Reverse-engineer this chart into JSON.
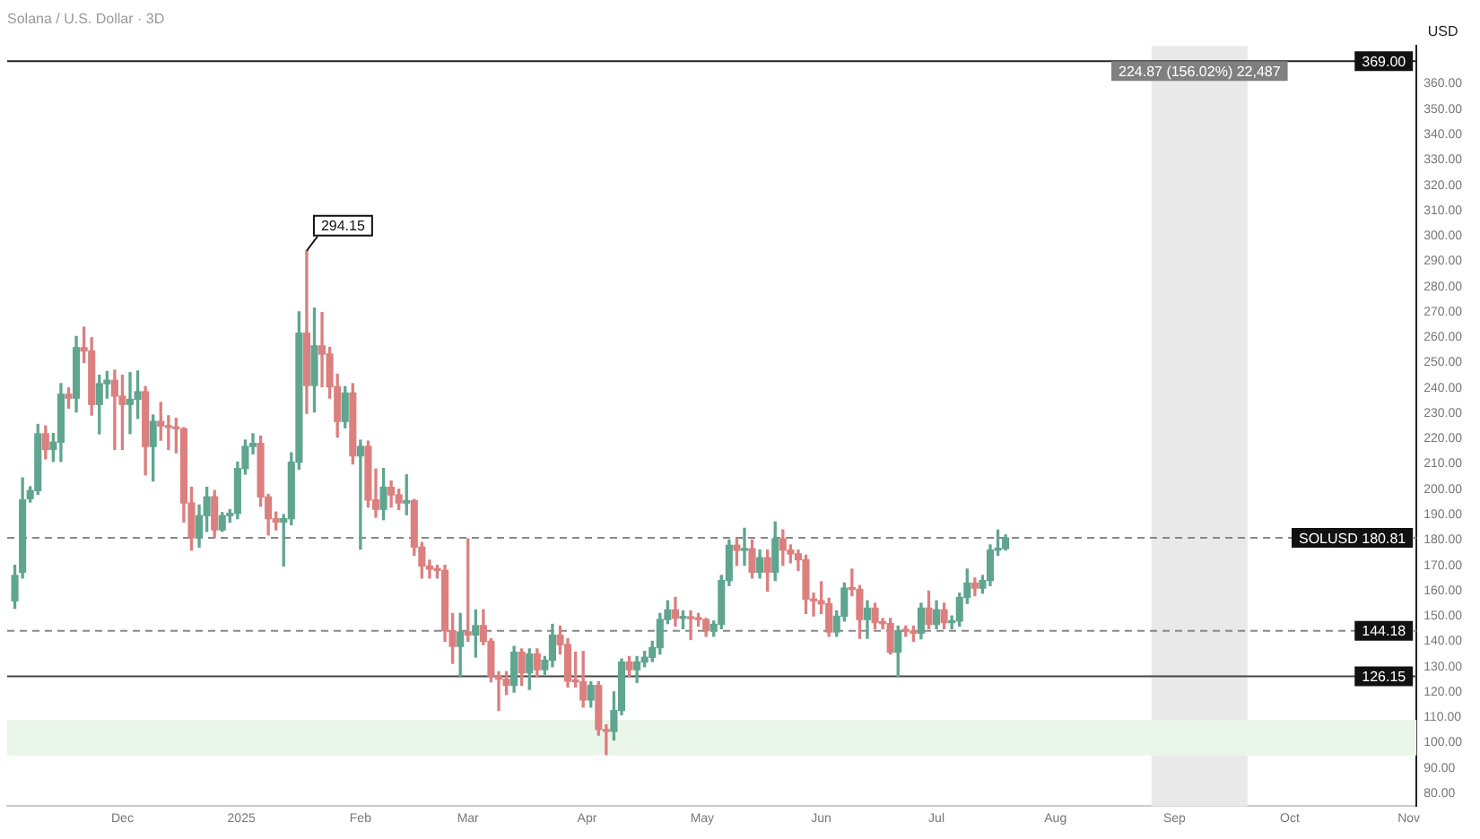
{
  "chart_data": {
    "type": "candlestick",
    "title": "Solana / U.S. Dollar · 3D",
    "ylabel": "USD",
    "x": [
      "2024-11-03",
      "2024-11-05",
      "2024-11-07",
      "2024-11-09",
      "2024-11-11",
      "2024-11-13",
      "2024-11-15",
      "2024-11-17",
      "2024-11-19",
      "2024-11-21",
      "2024-11-23",
      "2024-11-25",
      "2024-11-27",
      "2024-11-29",
      "2024-12-01",
      "2024-12-03",
      "2024-12-05",
      "2024-12-07",
      "2024-12-09",
      "2024-12-11",
      "2024-12-13",
      "2024-12-15",
      "2024-12-17",
      "2024-12-19",
      "2024-12-21",
      "2024-12-23",
      "2024-12-25",
      "2024-12-27",
      "2024-12-29",
      "2024-12-31",
      "2025-01-02",
      "2025-01-04",
      "2025-01-06",
      "2025-01-08",
      "2025-01-10",
      "2025-01-12",
      "2025-01-14",
      "2025-01-16",
      "2025-01-18",
      "2025-01-20",
      "2025-01-22",
      "2025-01-24",
      "2025-01-26",
      "2025-01-28",
      "2025-01-30",
      "2025-02-01",
      "2025-02-03",
      "2025-02-05",
      "2025-02-07",
      "2025-02-09",
      "2025-02-11",
      "2025-02-13",
      "2025-02-15",
      "2025-02-17",
      "2025-02-19",
      "2025-02-21",
      "2025-02-23",
      "2025-02-25",
      "2025-02-27",
      "2025-03-01",
      "2025-03-03",
      "2025-03-05",
      "2025-03-07",
      "2025-03-09",
      "2025-03-11",
      "2025-03-13",
      "2025-03-15",
      "2025-03-17",
      "2025-03-19",
      "2025-03-21",
      "2025-03-23",
      "2025-03-25",
      "2025-03-27",
      "2025-03-29",
      "2025-03-31",
      "2025-04-02",
      "2025-04-04",
      "2025-04-06",
      "2025-04-08",
      "2025-04-10",
      "2025-04-12",
      "2025-04-14",
      "2025-04-16",
      "2025-04-18",
      "2025-04-20",
      "2025-04-22",
      "2025-04-24",
      "2025-04-26",
      "2025-04-28",
      "2025-04-30",
      "2025-05-02",
      "2025-05-04",
      "2025-05-06",
      "2025-05-08",
      "2025-05-10",
      "2025-05-12",
      "2025-05-14",
      "2025-05-16",
      "2025-05-18",
      "2025-05-20",
      "2025-05-22",
      "2025-05-24",
      "2025-05-26",
      "2025-05-28",
      "2025-05-30",
      "2025-06-01",
      "2025-06-03",
      "2025-06-05",
      "2025-06-07",
      "2025-06-09",
      "2025-06-11",
      "2025-06-13",
      "2025-06-15",
      "2025-06-17",
      "2025-06-19",
      "2025-06-21",
      "2025-06-23",
      "2025-06-25",
      "2025-06-27",
      "2025-06-29",
      "2025-07-01",
      "2025-07-03",
      "2025-07-05",
      "2025-07-07",
      "2025-07-09",
      "2025-07-11",
      "2025-07-13",
      "2025-07-15",
      "2025-07-17",
      "2025-07-19"
    ],
    "ohlc": [
      [
        156,
        170,
        153,
        166
      ],
      [
        167.3,
        204.5,
        165,
        195.8
      ],
      [
        196.3,
        201,
        195,
        199.5
      ],
      [
        199.5,
        225.6,
        198,
        221.9
      ],
      [
        221.9,
        225,
        212,
        215.7
      ],
      [
        215.7,
        222,
        211,
        218.6
      ],
      [
        218.6,
        241.7,
        211,
        237.5
      ],
      [
        237.5,
        240,
        232,
        236
      ],
      [
        236,
        260.3,
        230.5,
        255.9
      ],
      [
        255.9,
        264,
        250,
        254.6
      ],
      [
        254.6,
        259.8,
        229.3,
        233.5
      ],
      [
        233.5,
        245,
        221.9,
        241.7
      ],
      [
        241.7,
        246.5,
        236,
        243
      ],
      [
        243,
        247,
        215.7,
        236.8
      ],
      [
        236.8,
        245,
        215.7,
        233.5
      ],
      [
        233.5,
        246,
        222,
        235.5
      ],
      [
        235.5,
        246.7,
        228,
        238.5
      ],
      [
        238.5,
        240.5,
        205.7,
        216.9
      ],
      [
        216.9,
        229.3,
        203.3,
        226.8
      ],
      [
        226.8,
        234.3,
        219.4,
        225
      ],
      [
        225,
        229,
        215.7,
        224.4
      ],
      [
        224.4,
        228,
        214.4,
        223.9
      ],
      [
        223.9,
        224.3,
        187.1,
        194.6
      ],
      [
        194.6,
        200.8,
        176,
        180.9
      ],
      [
        180.9,
        193.8,
        177.2,
        189.6
      ],
      [
        189.6,
        200.8,
        183.4,
        197
      ],
      [
        197,
        199.5,
        181,
        184
      ],
      [
        184,
        190.8,
        183.4,
        189.6
      ],
      [
        189.6,
        192,
        187,
        190.5
      ],
      [
        190.5,
        210.7,
        188.4,
        208.2
      ],
      [
        208.2,
        219.4,
        206,
        216.9
      ],
      [
        216.9,
        221.9,
        214,
        218.1
      ],
      [
        218.1,
        221,
        193.3,
        197
      ],
      [
        197,
        198,
        182,
        188.4
      ],
      [
        188.4,
        191,
        184,
        187.1
      ],
      [
        187.1,
        190,
        169.7,
        188.4
      ],
      [
        188.4,
        214.4,
        186,
        210.7
      ],
      [
        210.7,
        270,
        208,
        261.6
      ],
      [
        261.6,
        294.15,
        230,
        241
      ],
      [
        241,
        271.5,
        230.5,
        256.6
      ],
      [
        256.6,
        269.8,
        240.5,
        253.4
      ],
      [
        253.4,
        256,
        236,
        240.5
      ],
      [
        240.5,
        245.4,
        220.6,
        226.8
      ],
      [
        226.8,
        240.5,
        224.3,
        238
      ],
      [
        238,
        241.7,
        210,
        213.2
      ],
      [
        213.2,
        219.4,
        176.4,
        216.9
      ],
      [
        216.9,
        219,
        193,
        195.8
      ],
      [
        195.8,
        208,
        189,
        192.1
      ],
      [
        192.1,
        208.2,
        188,
        200.8
      ],
      [
        200.8,
        203.3,
        193,
        197.8
      ],
      [
        197.8,
        200,
        192,
        194.6
      ],
      [
        194.6,
        205.7,
        190,
        195.5
      ],
      [
        195.5,
        196,
        174,
        177.2
      ],
      [
        177.2,
        179,
        165,
        169.7
      ],
      [
        169.7,
        172,
        165,
        168.5
      ],
      [
        168.5,
        170,
        165,
        168
      ],
      [
        168,
        170,
        140,
        144.2
      ],
      [
        144.2,
        151,
        131.3,
        138
      ],
      [
        138,
        151,
        126.3,
        143.7
      ],
      [
        143.7,
        180.4,
        140,
        142.5
      ],
      [
        142.5,
        152.4,
        133.8,
        146.2
      ],
      [
        146.2,
        152.4,
        138.7,
        140
      ],
      [
        140,
        141,
        124,
        126.3
      ],
      [
        126.3,
        128,
        112.7,
        125.1
      ],
      [
        125.1,
        128,
        119,
        122.6
      ],
      [
        122.6,
        138,
        120,
        135.7
      ],
      [
        135.7,
        137,
        122.6,
        127.6
      ],
      [
        127.6,
        137,
        121,
        135
      ],
      [
        135,
        137,
        126,
        128.8
      ],
      [
        128.8,
        134,
        127,
        132.5
      ],
      [
        132.5,
        146.7,
        130,
        142.4
      ],
      [
        142.4,
        146,
        135,
        138.7
      ],
      [
        138.7,
        141,
        122,
        124.3
      ],
      [
        124.3,
        135.7,
        122,
        124
      ],
      [
        124,
        136,
        114,
        116.9
      ],
      [
        116.9,
        124,
        114,
        122.6
      ],
      [
        122.6,
        124,
        103,
        105.2
      ],
      [
        105.2,
        107,
        95.3,
        104.5
      ],
      [
        104.5,
        120,
        101,
        112.7
      ],
      [
        112.7,
        133,
        111,
        131.8
      ],
      [
        131.8,
        134,
        126,
        128.8
      ],
      [
        128.8,
        134,
        123.8,
        131.8
      ],
      [
        131.8,
        136,
        130,
        133.7
      ],
      [
        133.7,
        140,
        132,
        137.5
      ],
      [
        137.5,
        151,
        135,
        148.6
      ],
      [
        148.6,
        156,
        147,
        152.4
      ],
      [
        152.4,
        157.3,
        146,
        149.1
      ],
      [
        149.1,
        152,
        145,
        149.4
      ],
      [
        149.4,
        152,
        140.7,
        149
      ],
      [
        149,
        151,
        146,
        148.6
      ],
      [
        148.6,
        149,
        142,
        144.2
      ],
      [
        144.2,
        148,
        142,
        146.7
      ],
      [
        146.7,
        166,
        145,
        164
      ],
      [
        164,
        180,
        162,
        177.9
      ],
      [
        177.9,
        180.5,
        170,
        175.9
      ],
      [
        175.9,
        184.6,
        170,
        176.5
      ],
      [
        176.5,
        180,
        165,
        167.3
      ],
      [
        167.3,
        176,
        165,
        173
      ],
      [
        173,
        176,
        159.8,
        167.3
      ],
      [
        167.3,
        187.1,
        164,
        180.4
      ],
      [
        180.4,
        184,
        170,
        176
      ],
      [
        176,
        178,
        171,
        174.5
      ],
      [
        174.5,
        176,
        168,
        172.2
      ],
      [
        172.2,
        174,
        151,
        156.6
      ],
      [
        156.6,
        159,
        150,
        156
      ],
      [
        156,
        163.5,
        151,
        154.8
      ],
      [
        154.8,
        157,
        142,
        143.7
      ],
      [
        143.7,
        152,
        142,
        149.9
      ],
      [
        149.9,
        163,
        148,
        161
      ],
      [
        161,
        168.5,
        158,
        160.5
      ],
      [
        160.5,
        162,
        141.2,
        148.6
      ],
      [
        148.6,
        156,
        141.2,
        153.1
      ],
      [
        153.1,
        155,
        145,
        147.4
      ],
      [
        147.4,
        149,
        145,
        147
      ],
      [
        147,
        149,
        135,
        135.7
      ],
      [
        135.7,
        146,
        126.3,
        144.2
      ],
      [
        144.2,
        146,
        142,
        144
      ],
      [
        144,
        146,
        140,
        143.2
      ],
      [
        143.2,
        155,
        141,
        153.1
      ],
      [
        153.1,
        159.8,
        145,
        146.7
      ],
      [
        146.7,
        156,
        145,
        152.4
      ],
      [
        152.4,
        155,
        145,
        147.4
      ],
      [
        147.4,
        150,
        145,
        148
      ],
      [
        148,
        159,
        146,
        157.3
      ],
      [
        157.3,
        168.5,
        155,
        163
      ],
      [
        163,
        165,
        158,
        161
      ],
      [
        161,
        166,
        159,
        164
      ],
      [
        164,
        178,
        162,
        176
      ],
      [
        176,
        183.9,
        174,
        176.6
      ],
      [
        176.6,
        182,
        176,
        180.81
      ]
    ],
    "colors": [
      "#5fa58f",
      "#5fa58f",
      "#5fa58f",
      "#5fa58f",
      "#dc7f7f",
      "#5fa58f",
      "#5fa58f",
      "#dc7f7f",
      "#5fa58f",
      "#dc7f7f",
      "#dc7f7f",
      "#5fa58f",
      "#5fa58f",
      "#dc7f7f",
      "#dc7f7f",
      "#5fa58f",
      "#5fa58f",
      "#dc7f7f",
      "#5fa58f",
      "#dc7f7f",
      "#dc7f7f",
      "#dc7f7f",
      "#dc7f7f",
      "#dc7f7f",
      "#5fa58f",
      "#5fa58f",
      "#dc7f7f",
      "#5fa58f",
      "#5fa58f",
      "#5fa58f",
      "#5fa58f",
      "#5fa58f",
      "#dc7f7f",
      "#dc7f7f",
      "#dc7f7f",
      "#5fa58f",
      "#5fa58f",
      "#5fa58f",
      "#dc7f7f",
      "#5fa58f",
      "#dc7f7f",
      "#dc7f7f",
      "#dc7f7f",
      "#5fa58f",
      "#dc7f7f",
      "#5fa58f",
      "#dc7f7f",
      "#dc7f7f",
      "#5fa58f",
      "#dc7f7f",
      "#dc7f7f",
      "#5fa58f",
      "#dc7f7f",
      "#dc7f7f",
      "#dc7f7f",
      "#dc7f7f",
      "#dc7f7f",
      "#dc7f7f",
      "#5fa58f",
      "#dc7f7f",
      "#5fa58f",
      "#dc7f7f",
      "#dc7f7f",
      "#dc7f7f",
      "#dc7f7f",
      "#5fa58f",
      "#dc7f7f",
      "#5fa58f",
      "#dc7f7f",
      "#5fa58f",
      "#5fa58f",
      "#dc7f7f",
      "#dc7f7f",
      "#dc7f7f",
      "#dc7f7f",
      "#5fa58f",
      "#dc7f7f",
      "#dc7f7f",
      "#5fa58f",
      "#5fa58f",
      "#dc7f7f",
      "#5fa58f",
      "#5fa58f",
      "#5fa58f",
      "#5fa58f",
      "#5fa58f",
      "#dc7f7f",
      "#5fa58f",
      "#dc7f7f",
      "#dc7f7f",
      "#dc7f7f",
      "#5fa58f",
      "#5fa58f",
      "#5fa58f",
      "#dc7f7f",
      "#5fa58f",
      "#dc7f7f",
      "#5fa58f",
      "#dc7f7f",
      "#5fa58f",
      "#dc7f7f",
      "#dc7f7f",
      "#dc7f7f",
      "#dc7f7f",
      "#dc7f7f",
      "#dc7f7f",
      "#dc7f7f",
      "#5fa58f",
      "#5fa58f",
      "#dc7f7f",
      "#dc7f7f",
      "#5fa58f",
      "#dc7f7f",
      "#dc7f7f",
      "#dc7f7f",
      "#5fa58f",
      "#dc7f7f",
      "#dc7f7f",
      "#5fa58f",
      "#dc7f7f",
      "#5fa58f",
      "#dc7f7f",
      "#5fa58f",
      "#5fa58f",
      "#5fa58f",
      "#dc7f7f",
      "#5fa58f",
      "#5fa58f",
      "#5fa58f",
      "#5fa58f"
    ],
    "xlim": [
      "2024-11-01",
      "2025-11-03"
    ],
    "xticks": [
      {
        "value": "2024-12-01",
        "label": "Dec"
      },
      {
        "value": "2025-01-01",
        "label": "2025"
      },
      {
        "value": "2025-02-01",
        "label": "Feb"
      },
      {
        "value": "2025-03-01",
        "label": "Mar"
      },
      {
        "value": "2025-04-01",
        "label": "Apr"
      },
      {
        "value": "2025-05-01",
        "label": "May"
      },
      {
        "value": "2025-06-01",
        "label": "Jun"
      },
      {
        "value": "2025-07-01",
        "label": "Jul"
      },
      {
        "value": "2025-08-01",
        "label": "Aug"
      },
      {
        "value": "2025-09-01",
        "label": "Sep"
      },
      {
        "value": "2025-10-01",
        "label": "Oct"
      },
      {
        "value": "2025-11-01",
        "label": "Nov"
      }
    ],
    "ylim": [
      75,
      375
    ],
    "yticks": [
      {
        "value": 80,
        "label": "80.00"
      },
      {
        "value": 90,
        "label": "90.00"
      },
      {
        "value": 100,
        "label": "100.00"
      },
      {
        "value": 110,
        "label": "110.00"
      },
      {
        "value": 120,
        "label": "120.00"
      },
      {
        "value": 130,
        "label": "130.00"
      },
      {
        "value": 140,
        "label": "140.00"
      },
      {
        "value": 150,
        "label": "150.00"
      },
      {
        "value": 160,
        "label": "160.00"
      },
      {
        "value": 170,
        "label": "170.00"
      },
      {
        "value": 180,
        "label": "180.00"
      },
      {
        "value": 190,
        "label": "190.00"
      },
      {
        "value": 200,
        "label": "200.00"
      },
      {
        "value": 210,
        "label": "210.00"
      },
      {
        "value": 220,
        "label": "220.00"
      },
      {
        "value": 230,
        "label": "230.00"
      },
      {
        "value": 240,
        "label": "240.00"
      },
      {
        "value": 250,
        "label": "250.00"
      },
      {
        "value": 260,
        "label": "260.00"
      },
      {
        "value": 270,
        "label": "270.00"
      },
      {
        "value": 280,
        "label": "280.00"
      },
      {
        "value": 290,
        "label": "290.00"
      },
      {
        "value": 300,
        "label": "300.00"
      },
      {
        "value": 310,
        "label": "310.00"
      },
      {
        "value": 320,
        "label": "320.00"
      },
      {
        "value": 330,
        "label": "330.00"
      },
      {
        "value": 340,
        "label": "340.00"
      },
      {
        "value": 350,
        "label": "350.00"
      },
      {
        "value": 360,
        "label": "360.00"
      }
    ],
    "ref_lines": [
      {
        "axis": "y",
        "value": 369,
        "label": "369.00",
        "color": "#222222",
        "line_style": "solid"
      },
      {
        "axis": "y",
        "value": 180.81,
        "label": "SOLUSD 180.81",
        "color": "#888888",
        "line_style": "dashed"
      },
      {
        "axis": "y",
        "value": 144.18,
        "label": "144.18",
        "color": "#888888",
        "line_style": "dashed"
      },
      {
        "axis": "y",
        "value": 126.15,
        "label": "126.15",
        "color": "#444444",
        "line_style": "solid"
      }
    ],
    "bands": [
      {
        "axis": "x",
        "from": "2025-08-26",
        "to": "2025-09-20",
        "label": "224.87 (156.02%) 22,487",
        "color": "#e9e9e9"
      },
      {
        "axis": "y",
        "from": 95,
        "to": 109,
        "color": "#ebf6ea"
      }
    ],
    "annotations": [
      {
        "text": "294.15",
        "x": "2025-01-18",
        "y": 294.15
      }
    ],
    "grid": false,
    "legend": false
  }
}
